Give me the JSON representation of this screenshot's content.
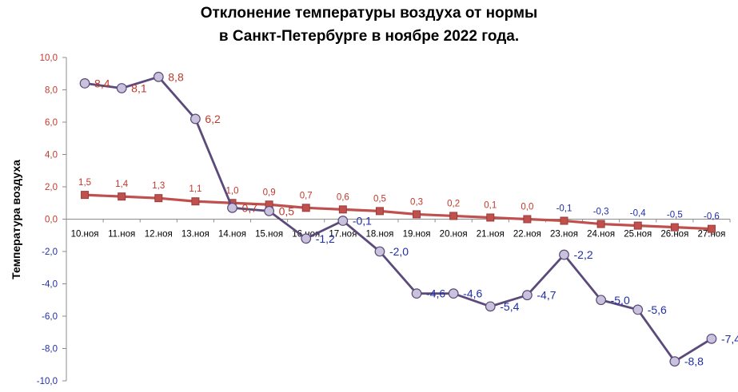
{
  "chart_data": {
    "type": "line",
    "title": [
      "Отклонение температуры воздуха от нормы",
      "в Санкт-Петербурге в ноябре 2022 года."
    ],
    "xlabel": "",
    "ylabel": "Температура воздуха",
    "ylim": [
      -10.0,
      10.0
    ],
    "ytick_labels": [
      "10,0",
      "8,0",
      "6,0",
      "4,0",
      "2,0",
      "0,0",
      "-2,0",
      "-4,0",
      "-6,0",
      "-8,0",
      "-10,0"
    ],
    "yticks": [
      10,
      8,
      6,
      4,
      2,
      0,
      -2,
      -4,
      -6,
      -8,
      -10
    ],
    "categories": [
      "10.ноя",
      "11.ноя",
      "12.ноя",
      "13.ноя",
      "14.ноя",
      "15.ноя",
      "16.ноя",
      "17.ноя",
      "18.ноя",
      "19.ноя",
      "20.ноя",
      "21.ноя",
      "22.ноя",
      "23.ноя",
      "24.ноя",
      "25.ноя",
      "26.ноя",
      "27.ноя"
    ],
    "grid": false,
    "legend": "none",
    "series": [
      {
        "marker": "circle",
        "line_color": "#5b4a7a",
        "marker_fill": "#c9c2dc",
        "values": [
          8.4,
          8.1,
          8.8,
          6.2,
          0.7,
          0.5,
          -1.2,
          -0.1,
          -2.0,
          -4.6,
          -4.6,
          -5.4,
          -4.7,
          -2.2,
          -5.0,
          -5.6,
          -8.8,
          -7.4
        ],
        "labels": [
          "8,4",
          "8,1",
          "8,8",
          "6,2",
          "0,7",
          "0,5",
          "-1,2",
          "-0,1",
          "-2,0",
          "-4,6",
          "-4,6",
          "-5,4",
          "-4,7",
          "-2,2",
          "-5,0",
          "-5,6",
          "-8,8",
          "-7,4"
        ]
      },
      {
        "marker": "square",
        "line_color": "#c0504d",
        "values": [
          1.5,
          1.4,
          1.3,
          1.1,
          1.0,
          0.9,
          0.7,
          0.6,
          0.5,
          0.3,
          0.2,
          0.1,
          0.0,
          -0.1,
          -0.3,
          -0.4,
          -0.5,
          -0.6
        ],
        "labels": [
          "1,5",
          "1,4",
          "1,3",
          "1,1",
          "1,0",
          "0,9",
          "0,7",
          "0,6",
          "0,5",
          "0,3",
          "0,2",
          "0,1",
          "0,0",
          "-0,1",
          "-0,3",
          "-0,4",
          "-0,5",
          "-0,6"
        ]
      }
    ],
    "colors": {
      "positive_label": "#c0392b",
      "negative_label": "#1f2ea6",
      "axis": "#8c8c8c"
    }
  }
}
